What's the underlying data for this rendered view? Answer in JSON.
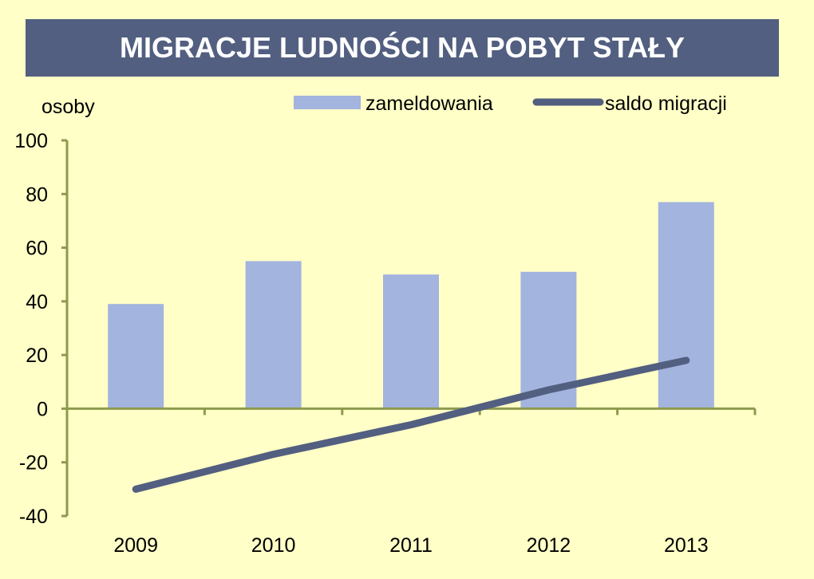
{
  "chart_data": {
    "type": "bar",
    "title": "MIGRACJE LUDNOŚCI NA POBYT STAŁY",
    "ylabel": "osoby",
    "xlabel": "",
    "categories": [
      "2009",
      "2010",
      "2011",
      "2012",
      "2013"
    ],
    "ylim": [
      -40,
      100
    ],
    "yticks": [
      "100",
      "80",
      "60",
      "40",
      "20",
      "0",
      "-20",
      "-40"
    ],
    "ytick_values": [
      100,
      80,
      60,
      40,
      20,
      0,
      -20,
      -40
    ],
    "grid": false,
    "legend_position": "top",
    "series": [
      {
        "name": "zameldowania",
        "type": "bar",
        "color": "#A3B4DF",
        "values": [
          39,
          55,
          50,
          51,
          77
        ]
      },
      {
        "name": "saldo migracji",
        "type": "line",
        "color": "#525F80",
        "values": [
          -30,
          -17,
          -6,
          7,
          18
        ]
      }
    ],
    "axis_color": "#8E9A4E"
  }
}
